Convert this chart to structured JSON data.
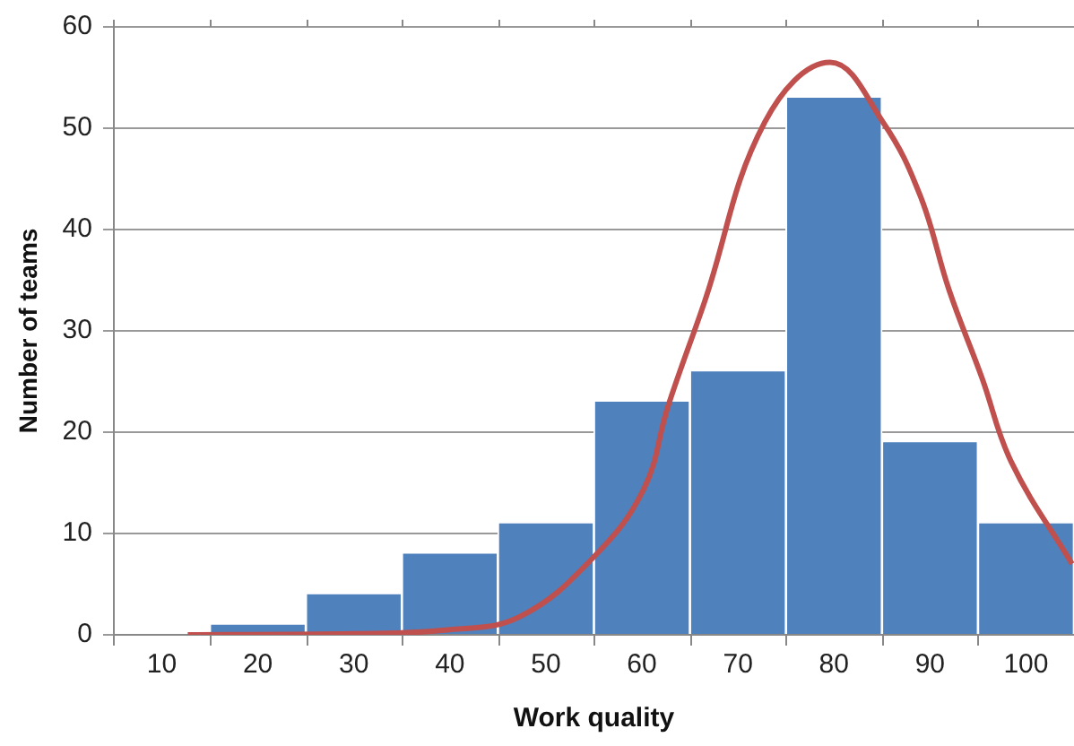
{
  "chart_data": {
    "type": "histogram",
    "xlabel": "Work quality",
    "ylabel": "Number of teams",
    "bins": [
      5,
      15,
      25,
      35,
      45,
      55,
      65,
      75,
      85,
      95,
      105
    ],
    "values": [
      0,
      1,
      4,
      8,
      11,
      23,
      26,
      53,
      19,
      11
    ],
    "color": "#4f81bd",
    "series": [
      {
        "type": "line",
        "color": "#c0504d",
        "x": [
          12.7,
          30,
          40,
          47.3,
          55,
          60.2,
          62.7,
          66.5,
          72.8,
          79.6,
          85.1,
          89,
          92,
          95.4,
          98.5,
          104.8
        ],
        "values": [
          0,
          0.1,
          0.5,
          1.8,
          7.7,
          14.4,
          22.5,
          32.8,
          50.6,
          56.5,
          50.6,
          43.3,
          34,
          25.4,
          17,
          7
        ]
      }
    ],
    "xlim": [
      5,
      105
    ],
    "xticks": [
      10,
      20,
      30,
      40,
      50,
      60,
      70,
      80,
      90,
      100
    ],
    "ylim": [
      0,
      60
    ],
    "yticks": [
      0,
      10,
      20,
      30,
      40,
      50,
      60
    ],
    "grid": "y",
    "legend": false,
    "marker": "none"
  }
}
